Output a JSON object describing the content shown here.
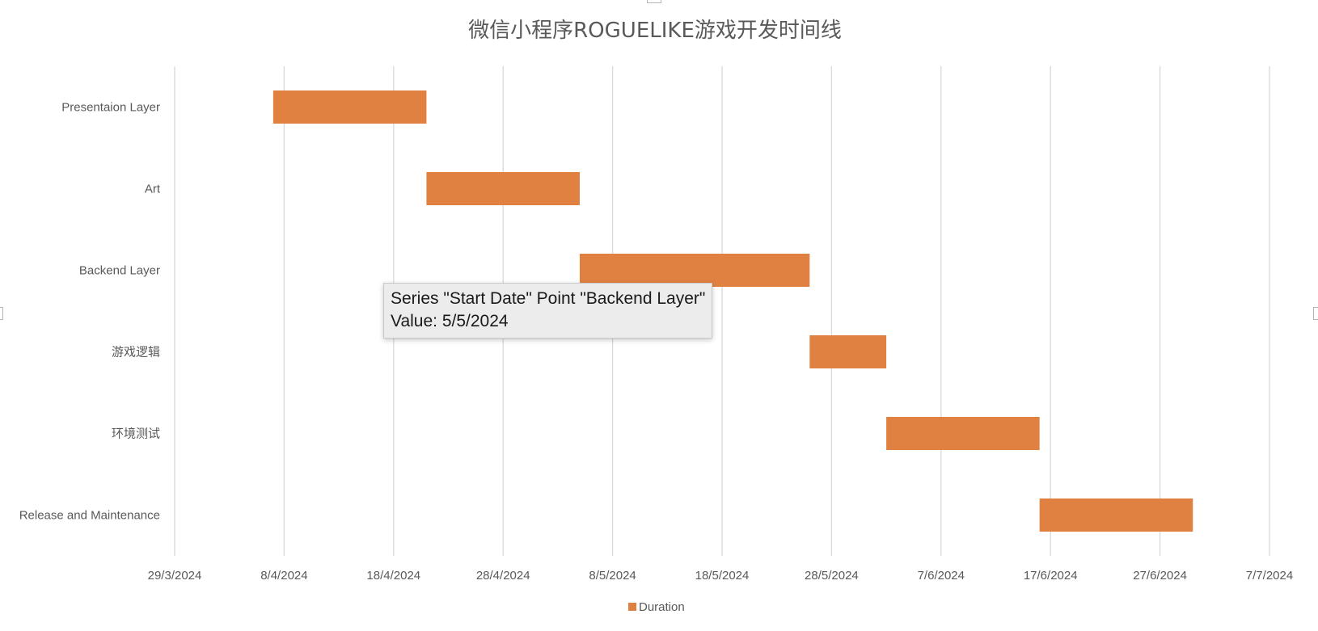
{
  "chart_data": {
    "type": "bar",
    "orientation": "horizontal-gantt",
    "title": "微信小程序ROGUELIKE游戏开发时间线",
    "categories": [
      "Presentaion Layer",
      "Art",
      "Backend Layer",
      "游戏逻辑",
      "环境测试",
      "Release and Maintenance"
    ],
    "series": [
      {
        "name": "Start Date",
        "hidden": true,
        "values": [
          "2024-04-07",
          "2024-04-21",
          "2024-05-05",
          "2024-05-26",
          "2024-06-02",
          "2024-06-16"
        ]
      },
      {
        "name": "Duration",
        "color": "#e08142",
        "values": [
          14,
          14,
          21,
          7,
          14,
          14
        ]
      }
    ],
    "x_axis": {
      "type": "date",
      "min": "2024-03-29",
      "max": "2024-07-07",
      "tick_labels": [
        "29/3/2024",
        "8/4/2024",
        "18/4/2024",
        "28/4/2024",
        "8/5/2024",
        "18/5/2024",
        "28/5/2024",
        "7/6/2024",
        "17/6/2024",
        "27/6/2024",
        "7/7/2024"
      ]
    },
    "grid": "vertical",
    "legend": {
      "position": "bottom",
      "entries": [
        "Duration"
      ]
    }
  },
  "tooltip": {
    "line1": "Series \"Start Date\" Point \"Backend Layer\"",
    "line2": "Value: 5/5/2024"
  },
  "colors": {
    "bar": "#e08142",
    "gridline": "#d9d9d9",
    "text": "#595959",
    "title": "#595959"
  }
}
